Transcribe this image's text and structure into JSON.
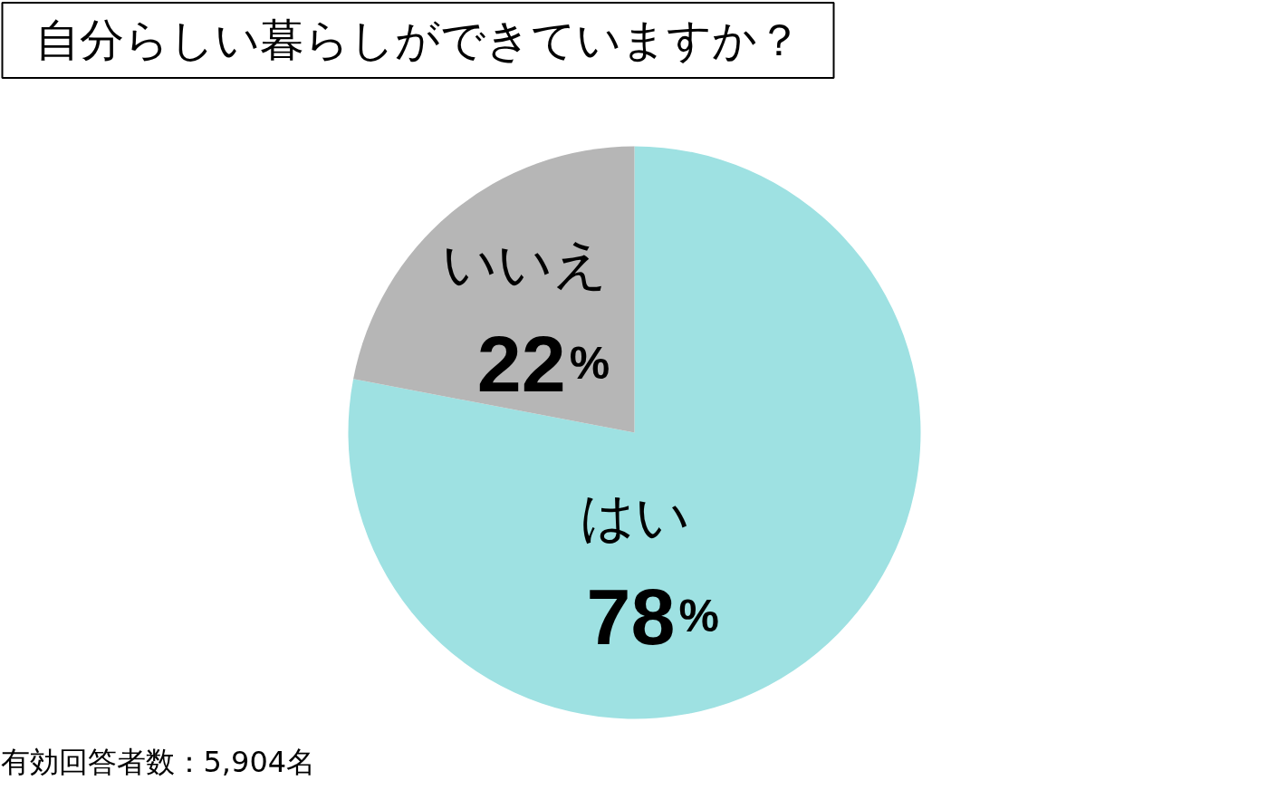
{
  "chart_data": {
    "type": "pie",
    "title": "自分らしい暮らしができていますか？",
    "categories": [
      "はい",
      "いいえ"
    ],
    "values": [
      78,
      22
    ],
    "colors": [
      "#9ee1e2",
      "#b6b6b6"
    ],
    "value_labels": [
      "78%",
      "22%"
    ],
    "annotations": [
      "有効回答者数：5,904名"
    ]
  }
}
